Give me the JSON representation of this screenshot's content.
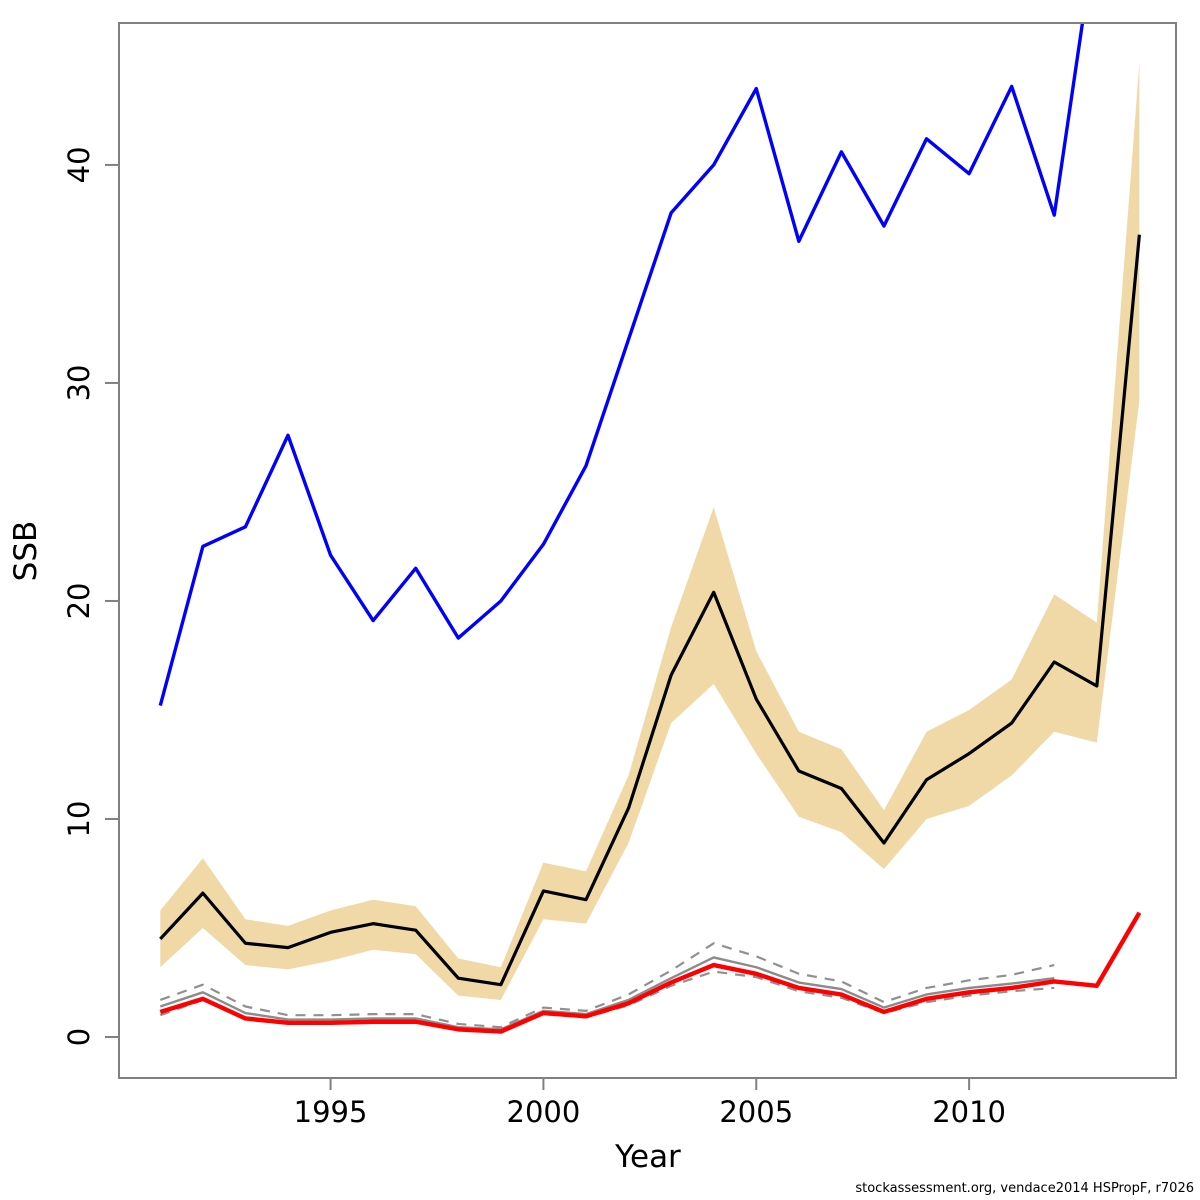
{
  "chart_data": {
    "type": "line",
    "title": "",
    "xlabel": "Year",
    "ylabel": "SSB",
    "footer": "stockassessment.org, vendace2014 HSPropF, r7026",
    "x_ticks": [
      1995,
      2000,
      2005,
      2010
    ],
    "y_ticks": [
      0,
      10,
      20,
      30,
      40
    ],
    "xlim": [
      1990.03,
      2014.86
    ],
    "ylim": [
      -1.88,
      46.51
    ],
    "grid": false,
    "legend_position": "none",
    "colors": {
      "band": "#F0D9A7",
      "blue_line": "#0000FF",
      "ssb_line": "#000000",
      "red_line": "#FF0000",
      "gray_line": "#8B8B8B",
      "axis": "#808080"
    },
    "band": {
      "name": "ssb-confidence-band",
      "x": [
        1991,
        1992,
        1993,
        1994,
        1995,
        1996,
        1997,
        1998,
        1999,
        2000,
        2001,
        2002,
        2003,
        2004,
        2005,
        2006,
        2007,
        2008,
        2009,
        2010,
        2011,
        2012,
        2013,
        2014
      ],
      "upper": [
        5.8,
        8.2,
        5.4,
        5.1,
        5.8,
        6.3,
        6.0,
        3.6,
        3.2,
        8.0,
        7.6,
        12.0,
        18.8,
        24.3,
        17.7,
        14.0,
        13.2,
        10.4,
        14.0,
        15.0,
        16.4,
        20.3,
        19.0,
        44.7
      ],
      "lower": [
        3.2,
        5.0,
        3.3,
        3.1,
        3.5,
        4.0,
        3.8,
        1.9,
        1.7,
        5.4,
        5.2,
        8.9,
        14.4,
        16.2,
        13.0,
        10.1,
        9.4,
        7.7,
        10.0,
        10.6,
        12.0,
        14.0,
        13.5,
        29.2
      ]
    },
    "series": [
      {
        "name": "blue-line",
        "color": "#0000FF",
        "style": "solid",
        "width": 3.4,
        "x": [
          1991,
          1992,
          1993,
          1994,
          1995,
          1996,
          1997,
          1998,
          1999,
          2000,
          2001,
          2002,
          2003,
          2004,
          2005,
          2006,
          2007,
          2008,
          2009,
          2010,
          2011,
          2012,
          2013
        ],
        "values": [
          15.2,
          22.5,
          23.4,
          27.6,
          22.1,
          19.1,
          21.5,
          18.3,
          20.0,
          22.6,
          26.2,
          32.0,
          37.8,
          40.0,
          43.5,
          36.5,
          40.6,
          37.2,
          41.2,
          39.6,
          43.6,
          37.7,
          51.0
        ]
      },
      {
        "name": "ssb-estimate-line",
        "color": "#000000",
        "style": "solid",
        "width": 3.2,
        "x": [
          1991,
          1992,
          1993,
          1994,
          1995,
          1996,
          1997,
          1998,
          1999,
          2000,
          2001,
          2002,
          2003,
          2004,
          2005,
          2006,
          2007,
          2008,
          2009,
          2010,
          2011,
          2012,
          2013,
          2014
        ],
        "values": [
          4.5,
          6.6,
          4.3,
          4.1,
          4.8,
          5.2,
          4.9,
          2.7,
          2.4,
          6.7,
          6.3,
          10.5,
          16.6,
          20.4,
          15.5,
          12.2,
          11.4,
          8.9,
          11.8,
          13.0,
          14.4,
          17.2,
          16.1,
          36.8
        ]
      },
      {
        "name": "gray-dashed-upper-line",
        "color": "#909090",
        "style": "dashed",
        "width": 2.2,
        "x": [
          1991,
          1992,
          1993,
          1994,
          1995,
          1996,
          1997,
          1998,
          1999,
          2000,
          2001,
          2002,
          2003,
          2004,
          2005,
          2006,
          2007,
          2008,
          2009,
          2010,
          2011,
          2012
        ],
        "values": [
          1.7,
          2.4,
          1.4,
          1.0,
          1.0,
          1.05,
          1.05,
          0.6,
          0.45,
          1.35,
          1.2,
          1.95,
          3.05,
          4.3,
          3.7,
          2.9,
          2.55,
          1.6,
          2.25,
          2.6,
          2.85,
          3.3
        ]
      },
      {
        "name": "gray-dashed-lower-line",
        "color": "#909090",
        "style": "dashed",
        "width": 2.2,
        "x": [
          1991,
          1992,
          1993,
          1994,
          1995,
          1996,
          1997,
          1998,
          1999,
          2000,
          2001,
          2002,
          2003,
          2004,
          2005,
          2006,
          2007,
          2008,
          2009,
          2010,
          2011,
          2012
        ],
        "values": [
          1.0,
          1.7,
          0.9,
          0.65,
          0.65,
          0.7,
          0.7,
          0.35,
          0.25,
          1.05,
          0.9,
          1.45,
          2.35,
          3.0,
          2.75,
          2.1,
          1.8,
          1.1,
          1.6,
          1.9,
          2.1,
          2.25
        ]
      },
      {
        "name": "gray-solid-line",
        "color": "#8B8B8B",
        "style": "solid",
        "width": 2.4,
        "x": [
          1991,
          1992,
          1993,
          1994,
          1995,
          1996,
          1997,
          1998,
          1999,
          2000,
          2001,
          2002,
          2003,
          2004,
          2005,
          2006,
          2007,
          2008,
          2009,
          2010,
          2011,
          2012
        ],
        "values": [
          1.4,
          2.05,
          1.1,
          0.8,
          0.8,
          0.85,
          0.85,
          0.45,
          0.35,
          1.2,
          1.05,
          1.7,
          2.7,
          3.65,
          3.2,
          2.5,
          2.2,
          1.35,
          1.95,
          2.25,
          2.45,
          2.7
        ]
      },
      {
        "name": "red-line",
        "color": "#FF0000",
        "style": "solid",
        "width": 4.4,
        "x": [
          1991,
          1992,
          1993,
          1994,
          1995,
          1996,
          1997,
          1998,
          1999,
          2000,
          2001,
          2002,
          2003,
          2004,
          2005,
          2006,
          2007,
          2008,
          2009,
          2010,
          2011,
          2012,
          2013,
          2014
        ],
        "values": [
          1.15,
          1.75,
          0.85,
          0.65,
          0.65,
          0.7,
          0.7,
          0.35,
          0.25,
          1.1,
          0.95,
          1.55,
          2.5,
          3.3,
          2.9,
          2.25,
          1.95,
          1.15,
          1.75,
          2.05,
          2.25,
          2.55,
          2.35,
          5.7
        ]
      }
    ]
  }
}
